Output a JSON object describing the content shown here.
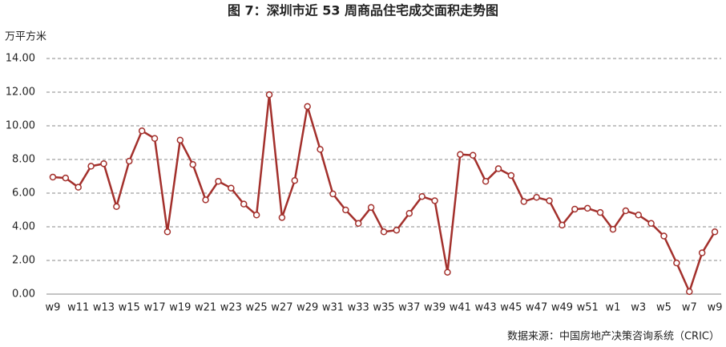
{
  "chart_data": {
    "type": "line",
    "title": "图 7：深圳市近 53 周商品住宅成交面积走势图",
    "y_axis_label": "万平方米",
    "source": "数据来源：中国房地产决策咨询系统（CRIC）",
    "categories": [
      "w9",
      null,
      "w11",
      null,
      "w13",
      null,
      "w15",
      null,
      "w17",
      null,
      "w19",
      null,
      "w21",
      null,
      "w23",
      null,
      "w25",
      null,
      "w27",
      null,
      "w29",
      null,
      "w31",
      null,
      "w33",
      null,
      "w35",
      null,
      "w37",
      null,
      "w39",
      null,
      "w41",
      null,
      "w43",
      null,
      "w45",
      null,
      "w47",
      null,
      "w49",
      null,
      "w51",
      null,
      "w1",
      null,
      "w3",
      null,
      "w5",
      null,
      "w7",
      null,
      "w9"
    ],
    "values": [
      6.95,
      6.9,
      6.35,
      7.6,
      7.75,
      5.2,
      7.9,
      9.7,
      9.25,
      3.7,
      9.15,
      7.7,
      5.6,
      6.7,
      6.3,
      5.35,
      4.7,
      11.85,
      4.55,
      6.75,
      11.15,
      8.6,
      5.95,
      5.0,
      4.2,
      5.15,
      3.7,
      3.8,
      4.8,
      5.8,
      5.55,
      1.3,
      8.3,
      8.25,
      6.7,
      7.45,
      7.05,
      5.5,
      5.75,
      5.55,
      4.1,
      5.05,
      5.1,
      4.85,
      3.85,
      4.95,
      4.7,
      4.2,
      3.45,
      1.85,
      0.15,
      2.45,
      3.7
    ],
    "color": "#a3302c",
    "ylim": [
      0,
      14
    ],
    "yticks": [
      {
        "value": 0,
        "label": "0.00"
      },
      {
        "value": 2,
        "label": "2.00"
      },
      {
        "value": 4,
        "label": "4.00"
      },
      {
        "value": 6,
        "label": "6.00"
      },
      {
        "value": 8,
        "label": "8.00"
      },
      {
        "value": 10,
        "label": "10.00"
      },
      {
        "value": 12,
        "label": "12.00"
      },
      {
        "value": 14,
        "label": "14.00"
      }
    ],
    "grid": true
  }
}
